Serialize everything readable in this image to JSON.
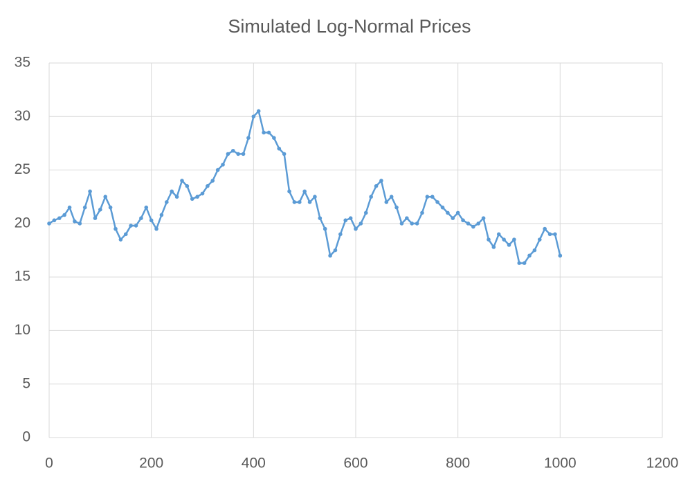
{
  "chart_data": {
    "type": "line",
    "title": "Simulated Log-Normal Prices",
    "grid": true,
    "xlim": [
      0,
      1200
    ],
    "xticks": [
      0,
      200,
      400,
      600,
      800,
      1000,
      1200
    ],
    "ylim": [
      0,
      35
    ],
    "yticks": [
      0,
      5,
      10,
      15,
      20,
      25,
      30,
      35
    ],
    "series": [
      {
        "color": "#5b9bd5",
        "x": [
          0,
          10,
          20,
          30,
          40,
          50,
          60,
          70,
          80,
          90,
          100,
          110,
          120,
          130,
          140,
          150,
          160,
          170,
          180,
          190,
          200,
          210,
          220,
          230,
          240,
          250,
          260,
          270,
          280,
          290,
          300,
          310,
          320,
          330,
          340,
          350,
          360,
          370,
          380,
          390,
          400,
          410,
          420,
          430,
          440,
          450,
          460,
          470,
          480,
          490,
          500,
          510,
          520,
          530,
          540,
          550,
          560,
          570,
          580,
          590,
          600,
          610,
          620,
          630,
          640,
          650,
          660,
          670,
          680,
          690,
          700,
          710,
          720,
          730,
          740,
          750,
          760,
          770,
          780,
          790,
          800,
          810,
          820,
          830,
          840,
          850,
          860,
          870,
          880,
          890,
          900,
          910,
          920,
          930,
          940,
          950,
          960,
          970,
          980,
          990,
          1000
        ],
        "values": [
          20,
          20.3,
          20.5,
          20.8,
          21.5,
          20.2,
          20,
          21.5,
          23,
          20.5,
          21.3,
          22.5,
          21.5,
          19.5,
          18.5,
          19,
          19.8,
          19.8,
          20.5,
          21.5,
          20.3,
          19.5,
          20.8,
          22,
          23,
          22.5,
          24,
          23.5,
          22.3,
          22.5,
          22.8,
          23.5,
          24,
          25,
          25.5,
          26.5,
          26.8,
          26.5,
          26.5,
          28,
          30,
          30.5,
          28.5,
          28.5,
          28,
          27,
          26.5,
          23,
          22,
          22,
          23,
          22,
          22.5,
          20.5,
          19.5,
          17,
          17.5,
          19,
          20.3,
          20.5,
          19.5,
          20,
          21,
          22.5,
          23.5,
          24,
          22,
          22.5,
          21.5,
          20,
          20.5,
          20,
          20,
          21,
          22.5,
          22.5,
          22,
          21.5,
          21,
          20.5,
          21,
          20.3,
          20,
          19.7,
          20,
          20.5,
          18.5,
          17.8,
          19,
          18.5,
          18,
          18.5,
          16.3,
          16.3,
          17,
          17.5,
          18.5,
          19.5,
          19,
          19,
          17
        ]
      }
    ]
  }
}
